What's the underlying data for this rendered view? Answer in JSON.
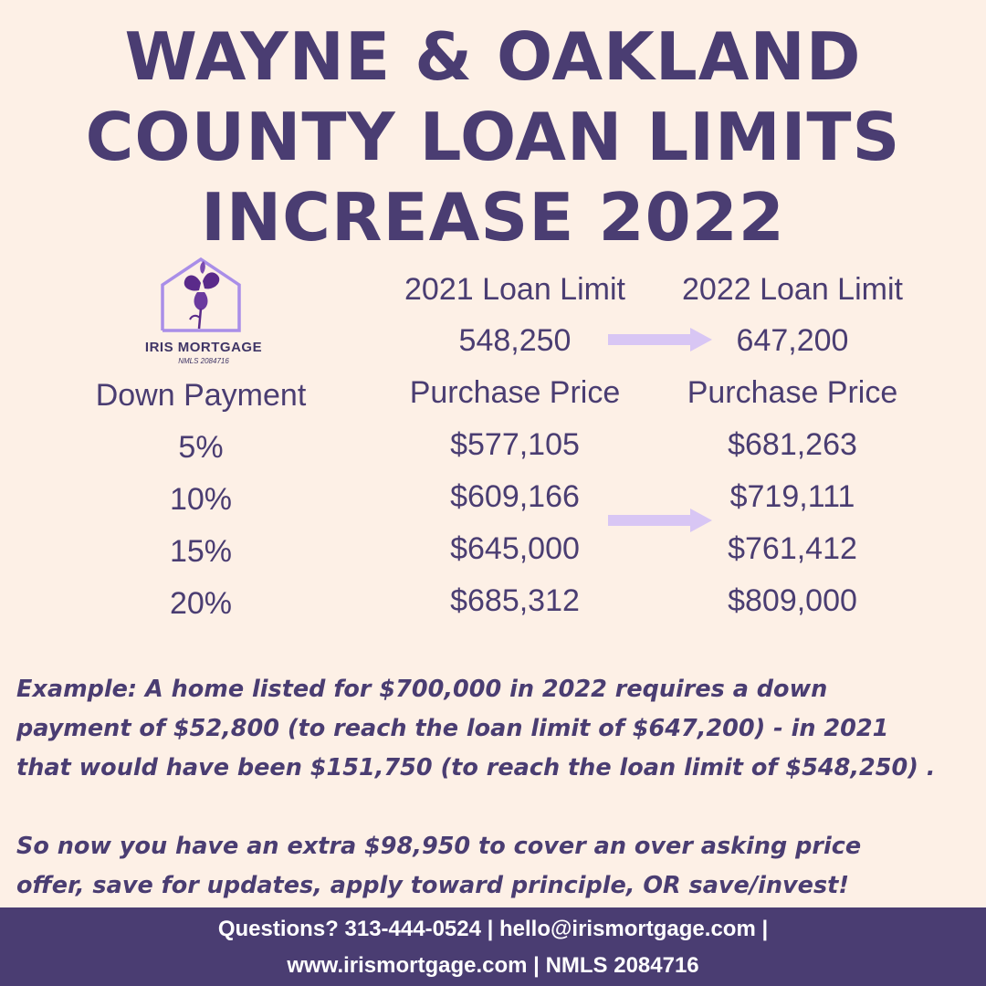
{
  "title": {
    "line1": "WAYNE & OAKLAND",
    "line2": "COUNTY LOAN LIMITS",
    "line3": "INCREASE 2022"
  },
  "logo": {
    "brand": "IRIS MORTGAGE",
    "nmls": "NMLS 2084716",
    "icon": "house-iris-icon"
  },
  "table": {
    "headers": [
      "2021 Loan Limit",
      "2022 Loan Limit"
    ],
    "limits": [
      "548,250",
      "647,200"
    ],
    "subheaders": [
      "Down Payment",
      "Purchase Price",
      "Purchase Price"
    ],
    "rows": [
      {
        "down": "5%",
        "price_2021": "$577,105",
        "price_2022": "$681,263"
      },
      {
        "down": "10%",
        "price_2021": "$609,166",
        "price_2022": "$719,111"
      },
      {
        "down": "15%",
        "price_2021": "$645,000",
        "price_2022": "$761,412"
      },
      {
        "down": "20%",
        "price_2021": "$685,312",
        "price_2022": "$809,000"
      }
    ]
  },
  "example": {
    "line1": "Example: A home listed for $700,000 in 2022 requires a down",
    "line2": "payment of $52,800 (to reach the loan limit of $647,200) - in 2021",
    "line3": "that would have been $151,750 (to reach the loan limit of $548,250) .",
    "line4": "So now you have an extra $98,950 to cover an over asking price",
    "line5": "offer, save for updates, apply toward principle, OR save/invest!"
  },
  "footer": {
    "line1": "Questions? 313-444-0524 | hello@irismortgage.com |",
    "line2": "www.irismortgage.com | NMLS 2084716"
  },
  "colors": {
    "background": "#fdf0e6",
    "primary": "#4a3d72",
    "arrow": "#d8c6f4",
    "logo_house": "#a98ee8",
    "logo_flower": "#5a2a8a"
  }
}
